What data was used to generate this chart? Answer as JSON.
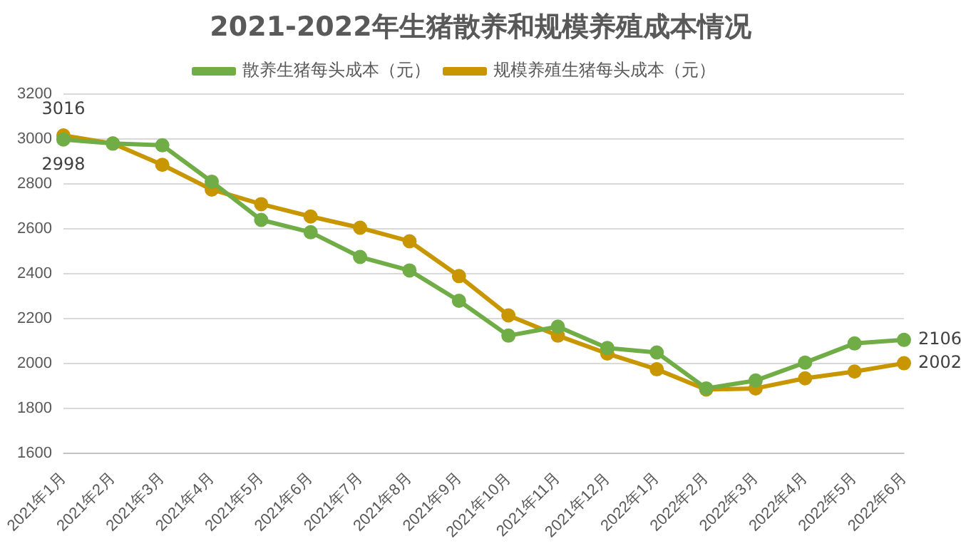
{
  "chart_data": {
    "type": "line",
    "title": "2021-2022年生猪散养和规模养殖成本情况",
    "categories": [
      "2021年1月",
      "2021年2月",
      "2021年3月",
      "2021年4月",
      "2021年5月",
      "2021年6月",
      "2021年7月",
      "2021年8月",
      "2021年9月",
      "2021年10月",
      "2021年11月",
      "2021年12月",
      "2022年1月",
      "2022年2月",
      "2022年3月",
      "2022年4月",
      "2022年5月",
      "2022年6月"
    ],
    "series": [
      {
        "name": "散养生猪每头成本（元）",
        "color": "#70ad47",
        "values": [
          2998,
          2980,
          2972,
          2810,
          2640,
          2585,
          2475,
          2415,
          2280,
          2125,
          2165,
          2070,
          2050,
          1890,
          1925,
          2005,
          2090,
          2106
        ],
        "value_labels": [
          "2998",
          null,
          null,
          null,
          null,
          null,
          null,
          null,
          null,
          null,
          null,
          null,
          null,
          null,
          null,
          null,
          null,
          "2106"
        ]
      },
      {
        "name": "规模养殖生猪每头成本（元）",
        "color": "#c89600",
        "values": [
          3016,
          2980,
          2885,
          2775,
          2710,
          2655,
          2605,
          2545,
          2390,
          2215,
          2125,
          2045,
          1975,
          1885,
          1890,
          1935,
          1965,
          2002
        ],
        "value_labels": [
          "3016",
          null,
          null,
          null,
          null,
          null,
          null,
          null,
          null,
          null,
          null,
          null,
          null,
          null,
          null,
          null,
          null,
          "2002"
        ]
      }
    ],
    "ylim": [
      1600,
      3200
    ],
    "yticks": [
      1600,
      1800,
      2000,
      2200,
      2400,
      2600,
      2800,
      3000,
      3200
    ],
    "grid": "y",
    "legend": "top",
    "marker": "circle",
    "line_style": "solid"
  }
}
